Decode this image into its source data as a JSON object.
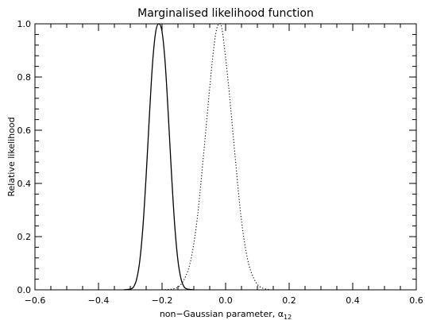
{
  "chart_data": {
    "type": "line",
    "title": "Marginalised likelihood function",
    "xlabel": "non−Gaussian parameter, α",
    "xlabel_subscript": "12",
    "ylabel": "Relative likelihood",
    "xlim": [
      -0.6,
      0.6
    ],
    "ylim": [
      0.0,
      1.0
    ],
    "x_ticks": [
      -0.6,
      -0.4,
      -0.2,
      0.0,
      0.2,
      0.4,
      0.6
    ],
    "x_tick_labels": [
      "−0.6",
      "−0.4",
      "−0.2",
      "0.0",
      "0.2",
      "0.4",
      "0.6"
    ],
    "y_ticks": [
      0.0,
      0.2,
      0.4,
      0.6,
      0.8,
      1.0
    ],
    "y_tick_labels": [
      "0.0",
      "0.2",
      "0.4",
      "0.6",
      "0.8",
      "1.0"
    ],
    "grid": false,
    "series": [
      {
        "style": "solid",
        "color": "#000000",
        "x": [
          -0.32,
          -0.3,
          -0.29,
          -0.28,
          -0.27,
          -0.26,
          -0.25,
          -0.24,
          -0.23,
          -0.22,
          -0.21,
          -0.2,
          -0.19,
          -0.18,
          -0.17,
          -0.16,
          -0.15,
          -0.14,
          -0.13,
          -0.12,
          -0.1
        ],
        "y": [
          0.0,
          0.003,
          0.01,
          0.04,
          0.11,
          0.24,
          0.43,
          0.65,
          0.85,
          0.97,
          1.0,
          0.97,
          0.85,
          0.65,
          0.43,
          0.24,
          0.11,
          0.04,
          0.01,
          0.003,
          0.0
        ]
      },
      {
        "style": "dotted",
        "color": "#000000",
        "x": [
          -0.2,
          -0.17,
          -0.15,
          -0.13,
          -0.11,
          -0.09,
          -0.07,
          -0.05,
          -0.04,
          -0.03,
          -0.02,
          -0.01,
          0.01,
          0.03,
          0.05,
          0.07,
          0.09,
          0.11,
          0.14
        ],
        "y": [
          0.0,
          0.003,
          0.01,
          0.04,
          0.11,
          0.26,
          0.5,
          0.76,
          0.88,
          0.97,
          1.0,
          0.97,
          0.76,
          0.5,
          0.26,
          0.11,
          0.04,
          0.01,
          0.0
        ]
      }
    ]
  }
}
